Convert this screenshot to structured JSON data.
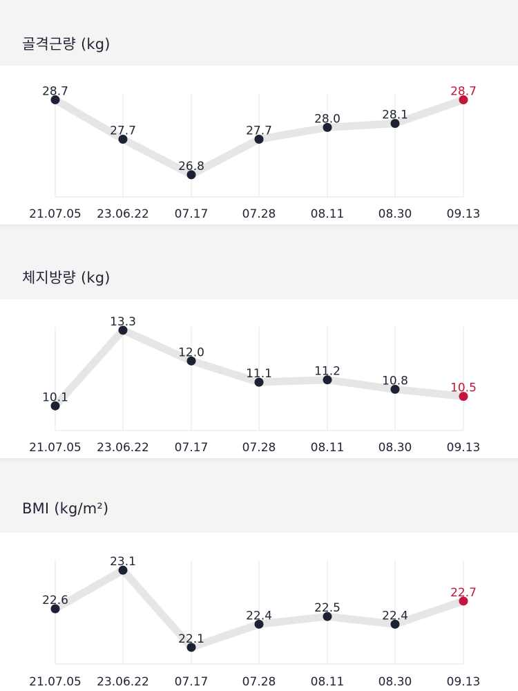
{
  "colors": {
    "point": "#1c2233",
    "highlight": "#c3143c",
    "line": "#e6e6e6",
    "grid": "#ededed",
    "label": "#1f2433",
    "sublabel": "#b0b0b0",
    "header_bg": "#f4f4f5"
  },
  "sections": [
    {
      "title": "골격근량 (kg)"
    },
    {
      "title": "체지방량 (kg)"
    },
    {
      "title": "BMI (kg/m²)"
    }
  ],
  "chart_data": [
    {
      "type": "line",
      "title": "골격근량 (kg)",
      "categories": [
        "21.07.05",
        "23.06.22",
        "07.17",
        "07.28",
        "08.11",
        "08.30",
        "09.13"
      ],
      "values": [
        28.7,
        27.7,
        26.8,
        27.7,
        28.0,
        28.1,
        28.7
      ],
      "value_labels": [
        "28.7",
        "27.7",
        "26.8",
        "27.7",
        "28.0",
        "28.1",
        "28.7"
      ],
      "highlight_index": 6,
      "ylim": [
        26.5,
        28.9
      ],
      "grid": "vertical"
    },
    {
      "type": "line",
      "title": "체지방량 (kg)",
      "categories": [
        "21.07.05",
        "23.06.22",
        "07.17",
        "07.28",
        "08.11",
        "08.30",
        "09.13"
      ],
      "values": [
        10.1,
        13.3,
        12.0,
        11.1,
        11.2,
        10.8,
        10.5
      ],
      "value_labels": [
        "10.1",
        "13.3",
        "12.0",
        "11.1",
        "11.2",
        "10.8",
        "10.5"
      ],
      "highlight_index": 6,
      "ylim": [
        9.7,
        13.5
      ],
      "grid": "vertical"
    },
    {
      "type": "line",
      "title": "BMI (kg/m²)",
      "categories": [
        "21.07.05",
        "23.06.22",
        "07.17",
        "07.28",
        "08.11",
        "08.30",
        "09.13"
      ],
      "values": [
        22.6,
        23.1,
        22.1,
        22.4,
        22.5,
        22.4,
        22.7
      ],
      "value_labels": [
        "22.6",
        "23.1",
        "22.1",
        "22.4",
        "22.5",
        "22.4",
        "22.7"
      ],
      "highlight_index": 6,
      "ylim": [
        22.0,
        23.2
      ],
      "grid": "vertical"
    }
  ]
}
